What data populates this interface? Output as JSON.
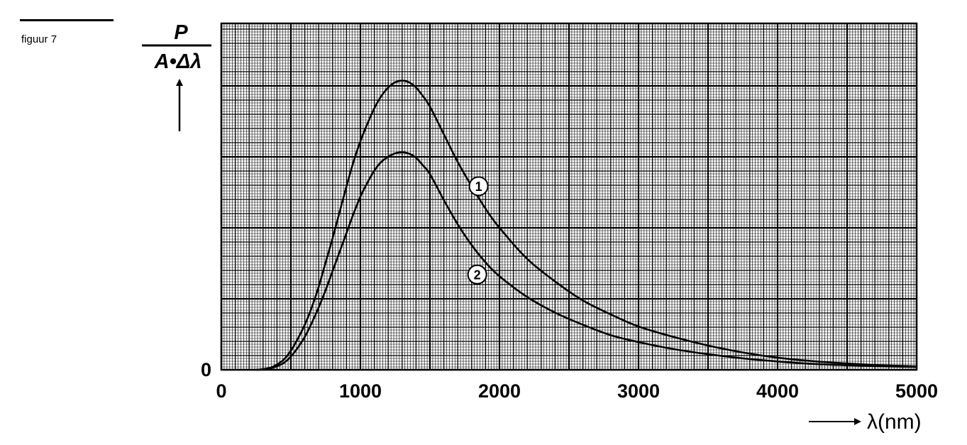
{
  "figure_label": "figuur 7",
  "chart_data": {
    "type": "line",
    "ylabel_numerator": "P",
    "ylabel_denominator": "A•Δλ",
    "xlabel": "λ(nm)",
    "xlim": [
      0,
      5000
    ],
    "ylim": [
      0,
      1.0
    ],
    "x_ticks": [
      "0",
      "1000",
      "2000",
      "3000",
      "4000",
      "5000"
    ],
    "y_ticks": [
      "0"
    ],
    "grid": true,
    "x": [
      250,
      300,
      350,
      400,
      450,
      500,
      550,
      600,
      650,
      700,
      750,
      800,
      850,
      900,
      950,
      1000,
      1050,
      1100,
      1150,
      1200,
      1250,
      1300,
      1350,
      1400,
      1450,
      1500,
      1600,
      1700,
      1800,
      1900,
      2000,
      2200,
      2400,
      2600,
      2800,
      3000,
      3250,
      3500,
      3750,
      4000,
      4250,
      4500,
      4750,
      5000
    ],
    "series": [
      {
        "name": "1",
        "values": [
          0,
          0.002,
          0.006,
          0.015,
          0.03,
          0.055,
          0.09,
          0.13,
          0.18,
          0.24,
          0.31,
          0.38,
          0.455,
          0.53,
          0.6,
          0.66,
          0.71,
          0.755,
          0.79,
          0.815,
          0.83,
          0.835,
          0.83,
          0.815,
          0.79,
          0.76,
          0.68,
          0.6,
          0.53,
          0.465,
          0.41,
          0.32,
          0.255,
          0.2,
          0.16,
          0.125,
          0.095,
          0.07,
          0.05,
          0.035,
          0.025,
          0.018,
          0.013,
          0.01
        ]
      },
      {
        "name": "2",
        "values": [
          0,
          0.001,
          0.004,
          0.01,
          0.02,
          0.038,
          0.064,
          0.095,
          0.135,
          0.18,
          0.23,
          0.285,
          0.34,
          0.395,
          0.45,
          0.5,
          0.54,
          0.575,
          0.6,
          0.615,
          0.625,
          0.628,
          0.624,
          0.612,
          0.59,
          0.565,
          0.49,
          0.42,
          0.36,
          0.31,
          0.27,
          0.21,
          0.165,
          0.13,
          0.1,
          0.08,
          0.06,
          0.045,
          0.033,
          0.024,
          0.017,
          0.013,
          0.01,
          0.008
        ]
      }
    ],
    "curve_labels": [
      {
        "text": "1",
        "x": 1850,
        "y": 0.53
      },
      {
        "text": "2",
        "x": 1840,
        "y": 0.275
      }
    ]
  }
}
